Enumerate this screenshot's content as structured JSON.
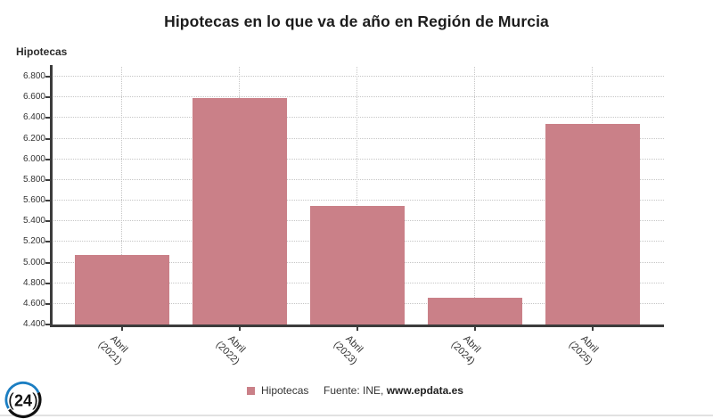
{
  "chart_data": {
    "type": "bar",
    "title": "Hipotecas en lo que va de año en Región de Murcia",
    "y_axis_title": "Hipotecas",
    "categories": [
      [
        "Abril",
        "(2021)"
      ],
      [
        "Abril",
        "(2022)"
      ],
      [
        "Abril",
        "(2023)"
      ],
      [
        "Abril",
        "(2024)"
      ],
      [
        "Abril",
        "(2025)"
      ]
    ],
    "values": [
      5070,
      6590,
      5550,
      4660,
      6340
    ],
    "series_name": "Hipotecas",
    "ylim": [
      4400,
      6800
    ],
    "ytick_step": 200,
    "yticks": [
      {
        "value": 4400,
        "label": "4.400"
      },
      {
        "value": 4600,
        "label": "4.600"
      },
      {
        "value": 4800,
        "label": "4.800"
      },
      {
        "value": 5000,
        "label": "5.000"
      },
      {
        "value": 5200,
        "label": "5.200"
      },
      {
        "value": 5400,
        "label": "5.400"
      },
      {
        "value": 5600,
        "label": "5.600"
      },
      {
        "value": 5800,
        "label": "5.800"
      },
      {
        "value": 6000,
        "label": "6.000"
      },
      {
        "value": 6200,
        "label": "6.200"
      },
      {
        "value": 6400,
        "label": "6.400"
      },
      {
        "value": 6600,
        "label": "6.600"
      },
      {
        "value": 6800,
        "label": "6.800"
      }
    ],
    "grid": true,
    "legend_position": "bottom",
    "bar_color": "#ca8088",
    "legend": {
      "label": "Hipotecas"
    },
    "source": {
      "prefix": "Fuente: INE, ",
      "bold": "www.epdata.es"
    }
  },
  "logo": {
    "left_paren": "(",
    "number": "24",
    "right_paren": ")",
    "blue": "#1b7ec2",
    "black": "#111111"
  }
}
